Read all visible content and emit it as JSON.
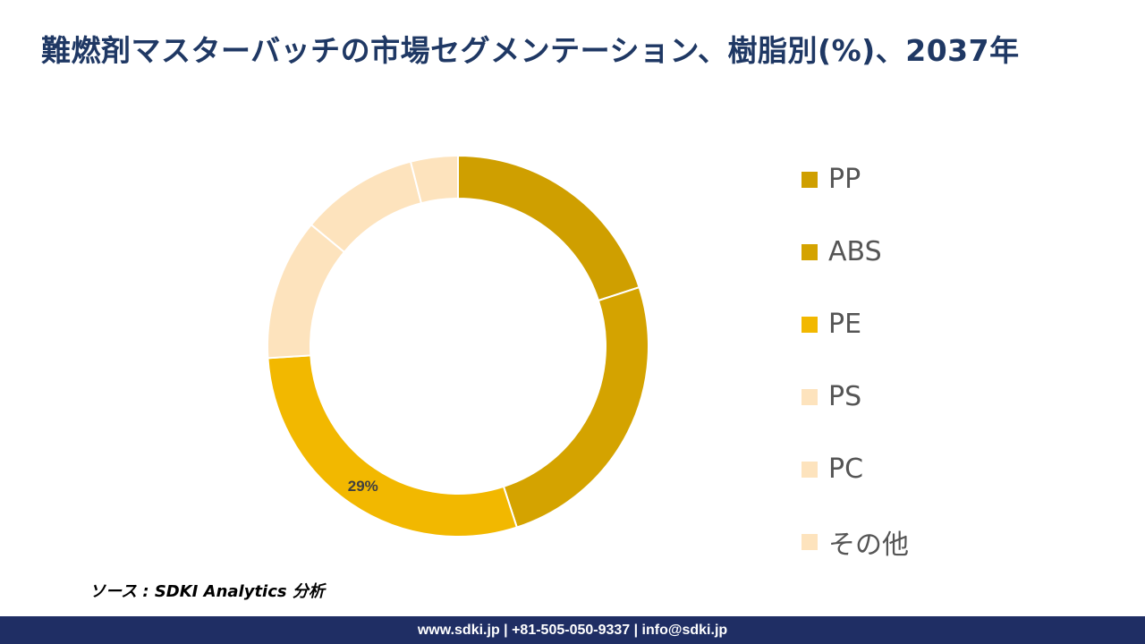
{
  "header": {
    "title": "難燃剤マスターバッチの市場セグメンテーション、樹脂別(%)、2037年"
  },
  "chart_data": {
    "type": "pie",
    "style": "donut",
    "categories": [
      "PP",
      "ABS",
      "PE",
      "PS",
      "PC",
      "その他"
    ],
    "values": [
      20,
      25,
      29,
      12,
      10,
      4
    ],
    "colors": [
      "#cf9f00",
      "#d4a300",
      "#f2b800",
      "#fde3bd",
      "#fde3bd",
      "#fde3bd"
    ],
    "data_labels": [
      "",
      "",
      "29%",
      "",
      "",
      ""
    ],
    "legend_position": "right"
  },
  "source": {
    "text": "ソース : SDKI Analytics 分析"
  },
  "footer": {
    "text": "www.sdki.jp | +81-505-050-9337 | info@sdki.jp"
  }
}
